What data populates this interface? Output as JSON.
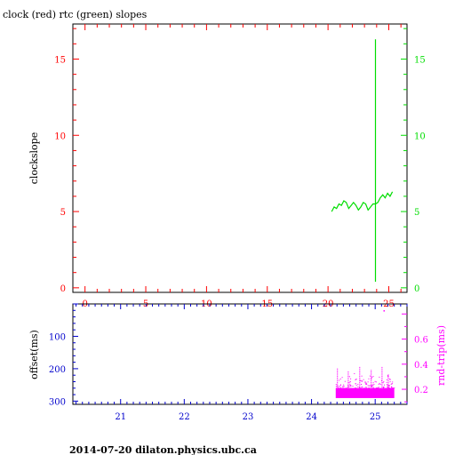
{
  "header": {
    "title": "clock (red) rtc (green) slopes"
  },
  "footer": {
    "text": "2014-07-20  dilaton.physics.ubc.ca"
  },
  "colors": {
    "clock": "#ff0000",
    "rtc": "#00dd00",
    "offset": "#0000cc",
    "roundtrip": "#ff00ff",
    "frame": "#000000"
  },
  "chart_data": [
    {
      "id": "slopes",
      "type": "line",
      "xlim": [
        -1,
        26.5
      ],
      "ylim": [
        -0.3,
        17.3
      ],
      "ylabel": "clockslope",
      "x_ticks": [
        0,
        5,
        10,
        15,
        20,
        25
      ],
      "x_tick_labels": [
        "0",
        "5",
        "10",
        "15",
        "20",
        "25"
      ],
      "y_ticks": [
        0,
        5,
        10,
        15
      ],
      "y_tick_labels": [
        "0",
        "5",
        "10",
        "15"
      ],
      "y2_tick_labels": [
        "0",
        "5",
        "10",
        "15"
      ],
      "series": [
        {
          "color_key": "rtc",
          "x": [
            20.3,
            20.5,
            20.7,
            20.9,
            21.1,
            21.3,
            21.5,
            21.7,
            21.9,
            22.1,
            22.3,
            22.5,
            22.7,
            22.9,
            23.1,
            23.3,
            23.5,
            23.7,
            23.9,
            24.1,
            24.3,
            24.5,
            24.7,
            24.9,
            25.1,
            25.3
          ],
          "y": [
            5.0,
            5.3,
            5.2,
            5.5,
            5.4,
            5.7,
            5.6,
            5.2,
            5.4,
            5.6,
            5.4,
            5.1,
            5.3,
            5.6,
            5.5,
            5.1,
            5.3,
            5.5,
            5.5,
            5.6,
            5.9,
            6.1,
            5.9,
            6.2,
            6.0,
            6.3
          ]
        },
        {
          "color_key": "rtc",
          "x": [
            23.9,
            23.9
          ],
          "y": [
            0.4,
            16.3
          ]
        }
      ]
    },
    {
      "id": "offset",
      "type": "scatter",
      "xlim": [
        20.25,
        25.5
      ],
      "ylabel": "offset(ms)",
      "ylim": [
        310,
        0
      ],
      "y_ticks": [
        100,
        200,
        300
      ],
      "y_tick_labels": [
        "100",
        "200",
        "300"
      ],
      "y2label": "rnd-trip(ms)",
      "y2lim": [
        0.08,
        0.88
      ],
      "y2_ticks": [
        0.2,
        0.4,
        0.6
      ],
      "y2_tick_labels": [
        "0.2",
        "0.4",
        "0.6"
      ],
      "x_ticks": [
        21,
        22,
        23,
        24,
        25
      ],
      "x_tick_labels": [
        "21",
        "22",
        "23",
        "24",
        "25"
      ],
      "roundtrip_band": {
        "x": [
          24.38,
          25.3
        ],
        "y": [
          0.13,
          0.21
        ]
      },
      "roundtrip_spikes": [
        {
          "x": 24.4,
          "y": 0.37
        },
        {
          "x": 24.57,
          "y": 0.35
        },
        {
          "x": 24.75,
          "y": 0.38
        },
        {
          "x": 24.93,
          "y": 0.36
        },
        {
          "x": 25.1,
          "y": 0.38
        },
        {
          "x": 25.2,
          "y": 0.33
        },
        {
          "x": 25.13,
          "y": 0.83
        }
      ]
    }
  ]
}
